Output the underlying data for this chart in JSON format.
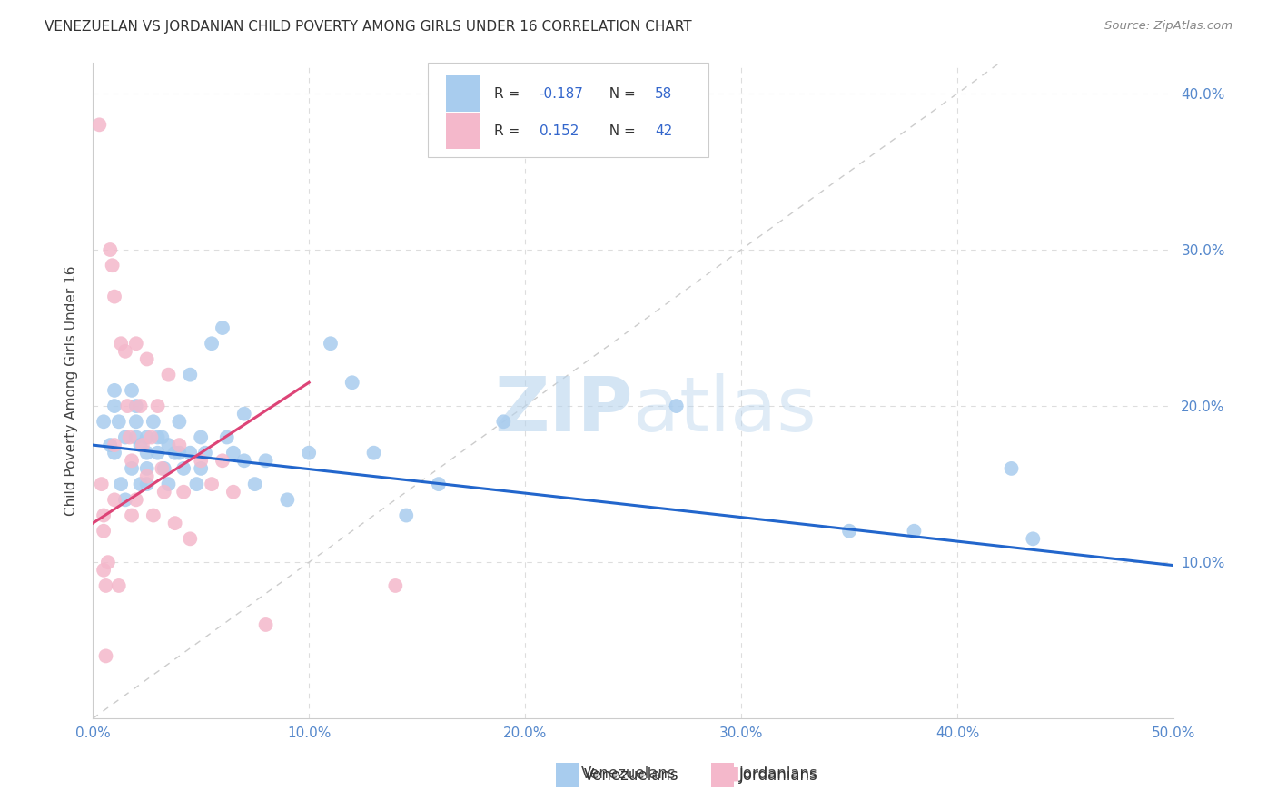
{
  "title": "VENEZUELAN VS JORDANIAN CHILD POVERTY AMONG GIRLS UNDER 16 CORRELATION CHART",
  "source": "Source: ZipAtlas.com",
  "ylabel": "Child Poverty Among Girls Under 16",
  "xlim": [
    0.0,
    0.5
  ],
  "ylim": [
    0.0,
    0.42
  ],
  "x_ticks": [
    0.0,
    0.1,
    0.2,
    0.3,
    0.4,
    0.5
  ],
  "x_tick_labels": [
    "0.0%",
    "10.0%",
    "20.0%",
    "30.0%",
    "40.0%",
    "50.0%"
  ],
  "y_ticks": [
    0.1,
    0.2,
    0.3,
    0.4
  ],
  "y_tick_labels": [
    "10.0%",
    "20.0%",
    "30.0%",
    "40.0%"
  ],
  "blue_color": "#a8ccee",
  "pink_color": "#f4b8cb",
  "line_blue": "#2266cc",
  "line_pink": "#dd4477",
  "diagonal_color": "#cccccc",
  "blue_line_x": [
    0.0,
    0.5
  ],
  "blue_line_y": [
    0.175,
    0.098
  ],
  "pink_line_x": [
    0.0,
    0.1
  ],
  "pink_line_y": [
    0.125,
    0.215
  ],
  "venezuelans_x": [
    0.005,
    0.008,
    0.01,
    0.01,
    0.01,
    0.012,
    0.013,
    0.015,
    0.015,
    0.018,
    0.018,
    0.02,
    0.02,
    0.02,
    0.022,
    0.022,
    0.025,
    0.025,
    0.025,
    0.025,
    0.028,
    0.03,
    0.03,
    0.032,
    0.033,
    0.035,
    0.035,
    0.038,
    0.04,
    0.04,
    0.042,
    0.045,
    0.045,
    0.048,
    0.05,
    0.05,
    0.052,
    0.055,
    0.06,
    0.062,
    0.065,
    0.07,
    0.07,
    0.075,
    0.08,
    0.09,
    0.1,
    0.11,
    0.12,
    0.13,
    0.145,
    0.16,
    0.19,
    0.27,
    0.35,
    0.38,
    0.425,
    0.435
  ],
  "venezuelans_y": [
    0.19,
    0.175,
    0.17,
    0.21,
    0.2,
    0.19,
    0.15,
    0.14,
    0.18,
    0.21,
    0.16,
    0.2,
    0.19,
    0.18,
    0.175,
    0.15,
    0.18,
    0.17,
    0.16,
    0.15,
    0.19,
    0.18,
    0.17,
    0.18,
    0.16,
    0.175,
    0.15,
    0.17,
    0.19,
    0.17,
    0.16,
    0.22,
    0.17,
    0.15,
    0.18,
    0.16,
    0.17,
    0.24,
    0.25,
    0.18,
    0.17,
    0.195,
    0.165,
    0.15,
    0.165,
    0.14,
    0.17,
    0.24,
    0.215,
    0.17,
    0.13,
    0.15,
    0.19,
    0.2,
    0.12,
    0.12,
    0.16,
    0.115
  ],
  "jordanians_x": [
    0.003,
    0.004,
    0.005,
    0.005,
    0.005,
    0.006,
    0.006,
    0.007,
    0.008,
    0.009,
    0.01,
    0.01,
    0.01,
    0.012,
    0.013,
    0.015,
    0.016,
    0.017,
    0.018,
    0.018,
    0.02,
    0.02,
    0.022,
    0.023,
    0.025,
    0.025,
    0.027,
    0.028,
    0.03,
    0.032,
    0.033,
    0.035,
    0.038,
    0.04,
    0.042,
    0.045,
    0.05,
    0.055,
    0.06,
    0.065,
    0.08,
    0.14
  ],
  "jordanians_y": [
    0.38,
    0.15,
    0.13,
    0.12,
    0.095,
    0.085,
    0.04,
    0.1,
    0.3,
    0.29,
    0.27,
    0.175,
    0.14,
    0.085,
    0.24,
    0.235,
    0.2,
    0.18,
    0.165,
    0.13,
    0.24,
    0.14,
    0.2,
    0.175,
    0.23,
    0.155,
    0.18,
    0.13,
    0.2,
    0.16,
    0.145,
    0.22,
    0.125,
    0.175,
    0.145,
    0.115,
    0.165,
    0.15,
    0.165,
    0.145,
    0.06,
    0.085
  ]
}
